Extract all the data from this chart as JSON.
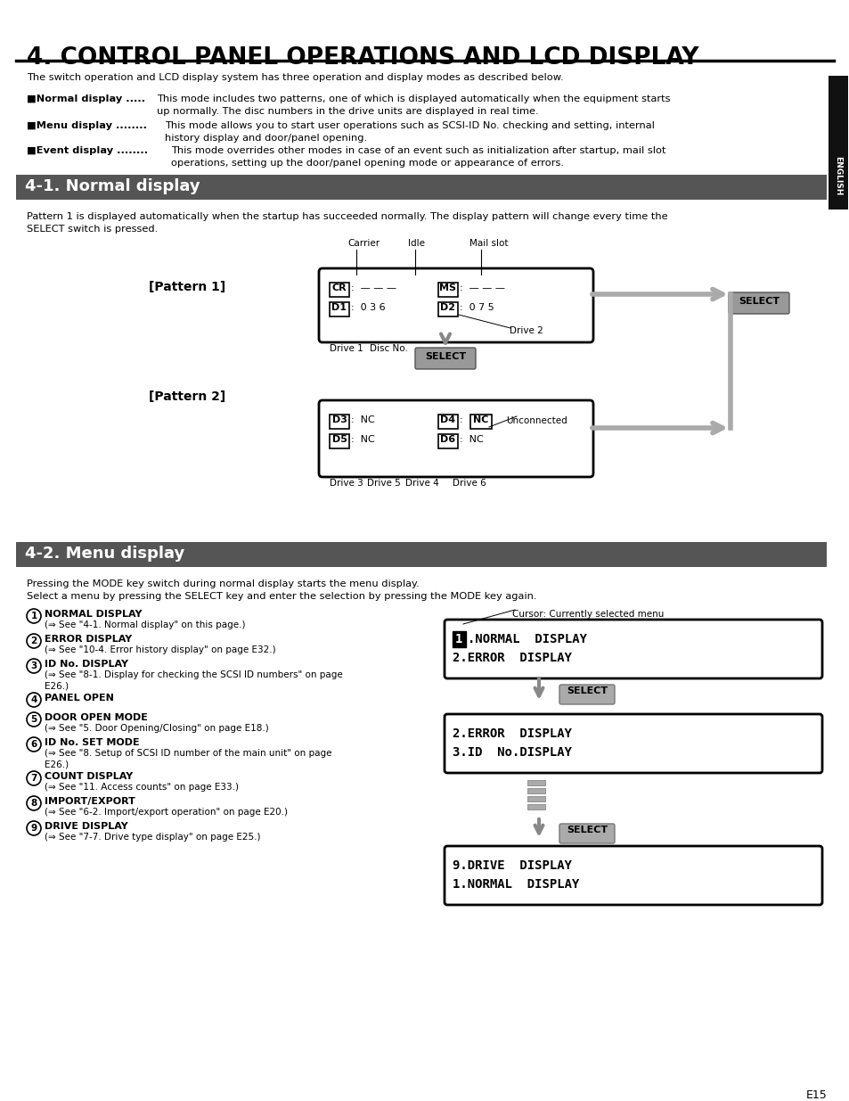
{
  "page_bg": "#ffffff",
  "title": "4. CONTROL PANEL OPERATIONS AND LCD DISPLAY",
  "section1_header": "4-1. Normal display",
  "section2_header": "4-2. Menu display",
  "english_sidebar": "ENGLISH",
  "page_number": "E15",
  "intro_text": "The switch operation and LCD display system has three operation and display modes as described below.",
  "bullet1_bold": "Normal display .....",
  "bullet1_text1": "This mode includes two patterns, one of which is displayed automatically when the equipment starts",
  "bullet1_text2": "up normally. The disc numbers in the drive units are displayed in real time.",
  "bullet2_bold": "Menu display ........",
  "bullet2_text1": "This mode allows you to start user operations such as SCSI-ID No. checking and setting, internal",
  "bullet2_text2": "history display and door/panel opening.",
  "bullet3_bold": "Event display ........",
  "bullet3_text1": "This mode overrides other modes in case of an event such as initialization after startup, mail slot",
  "bullet3_text2": "operations, setting up the door/panel opening mode or appearance of errors.",
  "section1_para1": "Pattern 1 is displayed automatically when the startup has succeeded normally. The display pattern will change every time the",
  "section1_para2": "SELECT switch is pressed.",
  "pattern1_label": "[Pattern 1]",
  "pattern2_label": "[Pattern 2]",
  "header_bg": "#555555",
  "header_text_color": "#ffffff",
  "select_text": "SELECT",
  "section2_para1": "Pressing the MODE key switch during normal display starts the menu display.",
  "section2_para2": "Select a menu by pressing the SELECT key and enter the selection by pressing the MODE key again.",
  "menu_items": [
    {
      "num": "1",
      "bold": "NORMAL DISPLAY",
      "sub1": "(⇒ See \"4-1. Normal display\" on this page.)",
      "sub2": ""
    },
    {
      "num": "2",
      "bold": "ERROR DISPLAY",
      "sub1": "(⇒ See \"10-4. Error history display\" on page E32.)",
      "sub2": ""
    },
    {
      "num": "3",
      "bold": "ID No. DISPLAY",
      "sub1": "(⇒ See \"8-1. Display for checking the SCSI ID numbers\" on page",
      "sub2": "E26.)"
    },
    {
      "num": "4",
      "bold": "PANEL OPEN",
      "sub1": "",
      "sub2": ""
    },
    {
      "num": "5",
      "bold": "DOOR OPEN MODE",
      "sub1": "(⇒ See \"5. Door Opening/Closing\" on page E18.)",
      "sub2": ""
    },
    {
      "num": "6",
      "bold": "ID No. SET MODE",
      "sub1": "(⇒ See \"8. Setup of SCSI ID number of the main unit\" on page",
      "sub2": "E26.)"
    },
    {
      "num": "7",
      "bold": "COUNT DISPLAY",
      "sub1": "(⇒ See \"11. Access counts\" on page E33.)",
      "sub2": ""
    },
    {
      "num": "8",
      "bold": "IMPORT/EXPORT",
      "sub1": "(⇒ See \"6-2. Import/export operation\" on page E20.)",
      "sub2": ""
    },
    {
      "num": "9",
      "bold": "DRIVE DISPLAY",
      "sub1": "(⇒ See \"7-7. Drive type display\" on page E25.)",
      "sub2": ""
    }
  ],
  "lcd1_line1a": "1",
  "lcd1_line1b": ".NORMAL  DISPLAY",
  "lcd1_line2": "2.ERROR  DISPLAY",
  "lcd2_line1": "2.ERROR  DISPLAY",
  "lcd2_line2": "3.ID  No.DISPLAY",
  "lcd3_line1": "9.DRIVE  DISPLAY",
  "lcd3_line2": "1.NORMAL  DISPLAY",
  "cursor_label": "Cursor: Currently selected menu"
}
